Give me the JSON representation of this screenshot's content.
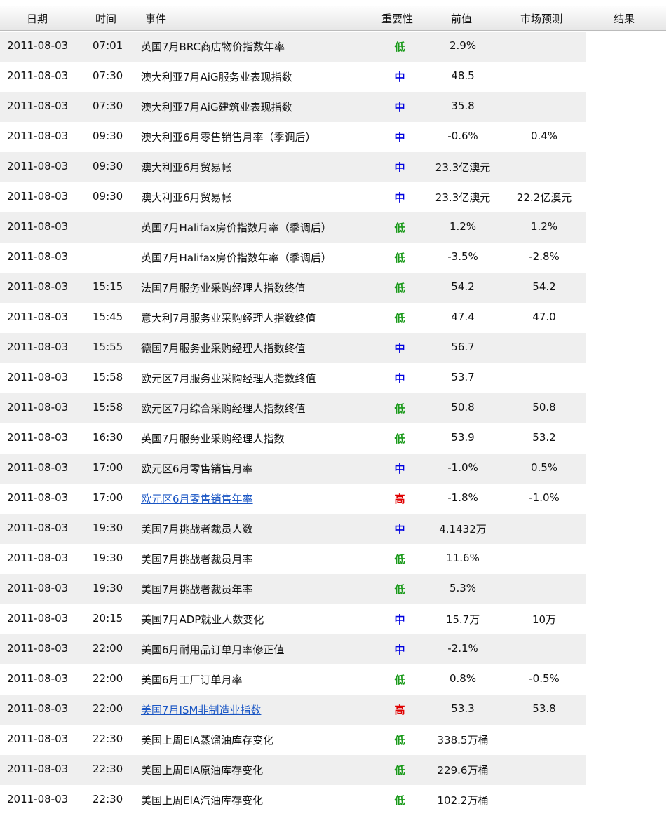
{
  "colors": {
    "低": "#1a9a1a",
    "中": "#0000e0",
    "高": "#e00000",
    "link": "#1a56c4"
  },
  "headers": {
    "date": "日期",
    "time": "时间",
    "event": "事件",
    "importance": "重要性",
    "previous": "前值",
    "forecast": "市场预测",
    "result": "结果"
  },
  "rows": [
    {
      "date": "2011-08-03",
      "time": "07:01",
      "event": "英国7月BRC商店物价指数年率",
      "importance": "低",
      "previous": "2.9%",
      "forecast": "",
      "result": ""
    },
    {
      "date": "2011-08-03",
      "time": "07:30",
      "event": "澳大利亚7月AiG服务业表现指数",
      "importance": "中",
      "previous": "48.5",
      "forecast": "",
      "result": ""
    },
    {
      "date": "2011-08-03",
      "time": "07:30",
      "event": "澳大利亚7月AiG建筑业表现指数",
      "importance": "中",
      "previous": "35.8",
      "forecast": "",
      "result": ""
    },
    {
      "date": "2011-08-03",
      "time": "09:30",
      "event": "澳大利亚6月零售销售月率（季调后）",
      "importance": "中",
      "previous": "-0.6%",
      "forecast": "0.4%",
      "result": ""
    },
    {
      "date": "2011-08-03",
      "time": "09:30",
      "event": "澳大利亚6月贸易帐",
      "importance": "中",
      "previous": "23.3亿澳元",
      "forecast": "",
      "result": ""
    },
    {
      "date": "2011-08-03",
      "time": "09:30",
      "event": "澳大利亚6月贸易帐",
      "importance": "中",
      "previous": "23.3亿澳元",
      "forecast": "22.2亿澳元",
      "result": ""
    },
    {
      "date": "2011-08-03",
      "time": "",
      "event": "英国7月Halifax房价指数月率（季调后）",
      "importance": "低",
      "previous": "1.2%",
      "forecast": "1.2%",
      "result": ""
    },
    {
      "date": "2011-08-03",
      "time": "",
      "event": "英国7月Halifax房价指数年率（季调后）",
      "importance": "低",
      "previous": "-3.5%",
      "forecast": "-2.8%",
      "result": ""
    },
    {
      "date": "2011-08-03",
      "time": "15:15",
      "event": "法国7月服务业采购经理人指数终值",
      "importance": "低",
      "previous": "54.2",
      "forecast": "54.2",
      "result": ""
    },
    {
      "date": "2011-08-03",
      "time": "15:45",
      "event": "意大利7月服务业采购经理人指数终值",
      "importance": "低",
      "previous": "47.4",
      "forecast": "47.0",
      "result": ""
    },
    {
      "date": "2011-08-03",
      "time": "15:55",
      "event": "德国7月服务业采购经理人指数终值",
      "importance": "中",
      "previous": "56.7",
      "forecast": "",
      "result": ""
    },
    {
      "date": "2011-08-03",
      "time": "15:58",
      "event": "欧元区7月服务业采购经理人指数终值",
      "importance": "中",
      "previous": "53.7",
      "forecast": "",
      "result": ""
    },
    {
      "date": "2011-08-03",
      "time": "15:58",
      "event": "欧元区7月综合采购经理人指数终值",
      "importance": "低",
      "previous": "50.8",
      "forecast": "50.8",
      "result": ""
    },
    {
      "date": "2011-08-03",
      "time": "16:30",
      "event": "英国7月服务业采购经理人指数",
      "importance": "低",
      "previous": "53.9",
      "forecast": "53.2",
      "result": ""
    },
    {
      "date": "2011-08-03",
      "time": "17:00",
      "event": "欧元区6月零售销售月率",
      "importance": "中",
      "previous": "-1.0%",
      "forecast": "0.5%",
      "result": ""
    },
    {
      "date": "2011-08-03",
      "time": "17:00",
      "event": "欧元区6月零售销售年率",
      "importance": "高",
      "previous": "-1.8%",
      "forecast": "-1.0%",
      "result": "",
      "link": true
    },
    {
      "date": "2011-08-03",
      "time": "19:30",
      "event": "美国7月挑战者裁员人数",
      "importance": "中",
      "previous": "4.1432万",
      "forecast": "",
      "result": ""
    },
    {
      "date": "2011-08-03",
      "time": "19:30",
      "event": "美国7月挑战者裁员月率",
      "importance": "低",
      "previous": "11.6%",
      "forecast": "",
      "result": ""
    },
    {
      "date": "2011-08-03",
      "time": "19:30",
      "event": "美国7月挑战者裁员年率",
      "importance": "低",
      "previous": "5.3%",
      "forecast": "",
      "result": ""
    },
    {
      "date": "2011-08-03",
      "time": "20:15",
      "event": "美国7月ADP就业人数变化",
      "importance": "中",
      "previous": "15.7万",
      "forecast": "10万",
      "result": ""
    },
    {
      "date": "2011-08-03",
      "time": "22:00",
      "event": "美国6月耐用品订单月率修正值",
      "importance": "中",
      "previous": "-2.1%",
      "forecast": "",
      "result": ""
    },
    {
      "date": "2011-08-03",
      "time": "22:00",
      "event": "美国6月工厂订单月率",
      "importance": "低",
      "previous": "0.8%",
      "forecast": "-0.5%",
      "result": ""
    },
    {
      "date": "2011-08-03",
      "time": "22:00",
      "event": "美国7月ISM非制造业指数",
      "importance": "高",
      "previous": "53.3",
      "forecast": "53.8",
      "result": "",
      "link": true
    },
    {
      "date": "2011-08-03",
      "time": "22:30",
      "event": "美国上周EIA蒸馏油库存变化",
      "importance": "低",
      "previous": "338.5万桶",
      "forecast": "",
      "result": ""
    },
    {
      "date": "2011-08-03",
      "time": "22:30",
      "event": "美国上周EIA原油库存变化",
      "importance": "低",
      "previous": "229.6万桶",
      "forecast": "",
      "result": ""
    },
    {
      "date": "2011-08-03",
      "time": "22:30",
      "event": "美国上周EIA汽油库存变化",
      "importance": "低",
      "previous": "102.2万桶",
      "forecast": "",
      "result": ""
    }
  ]
}
